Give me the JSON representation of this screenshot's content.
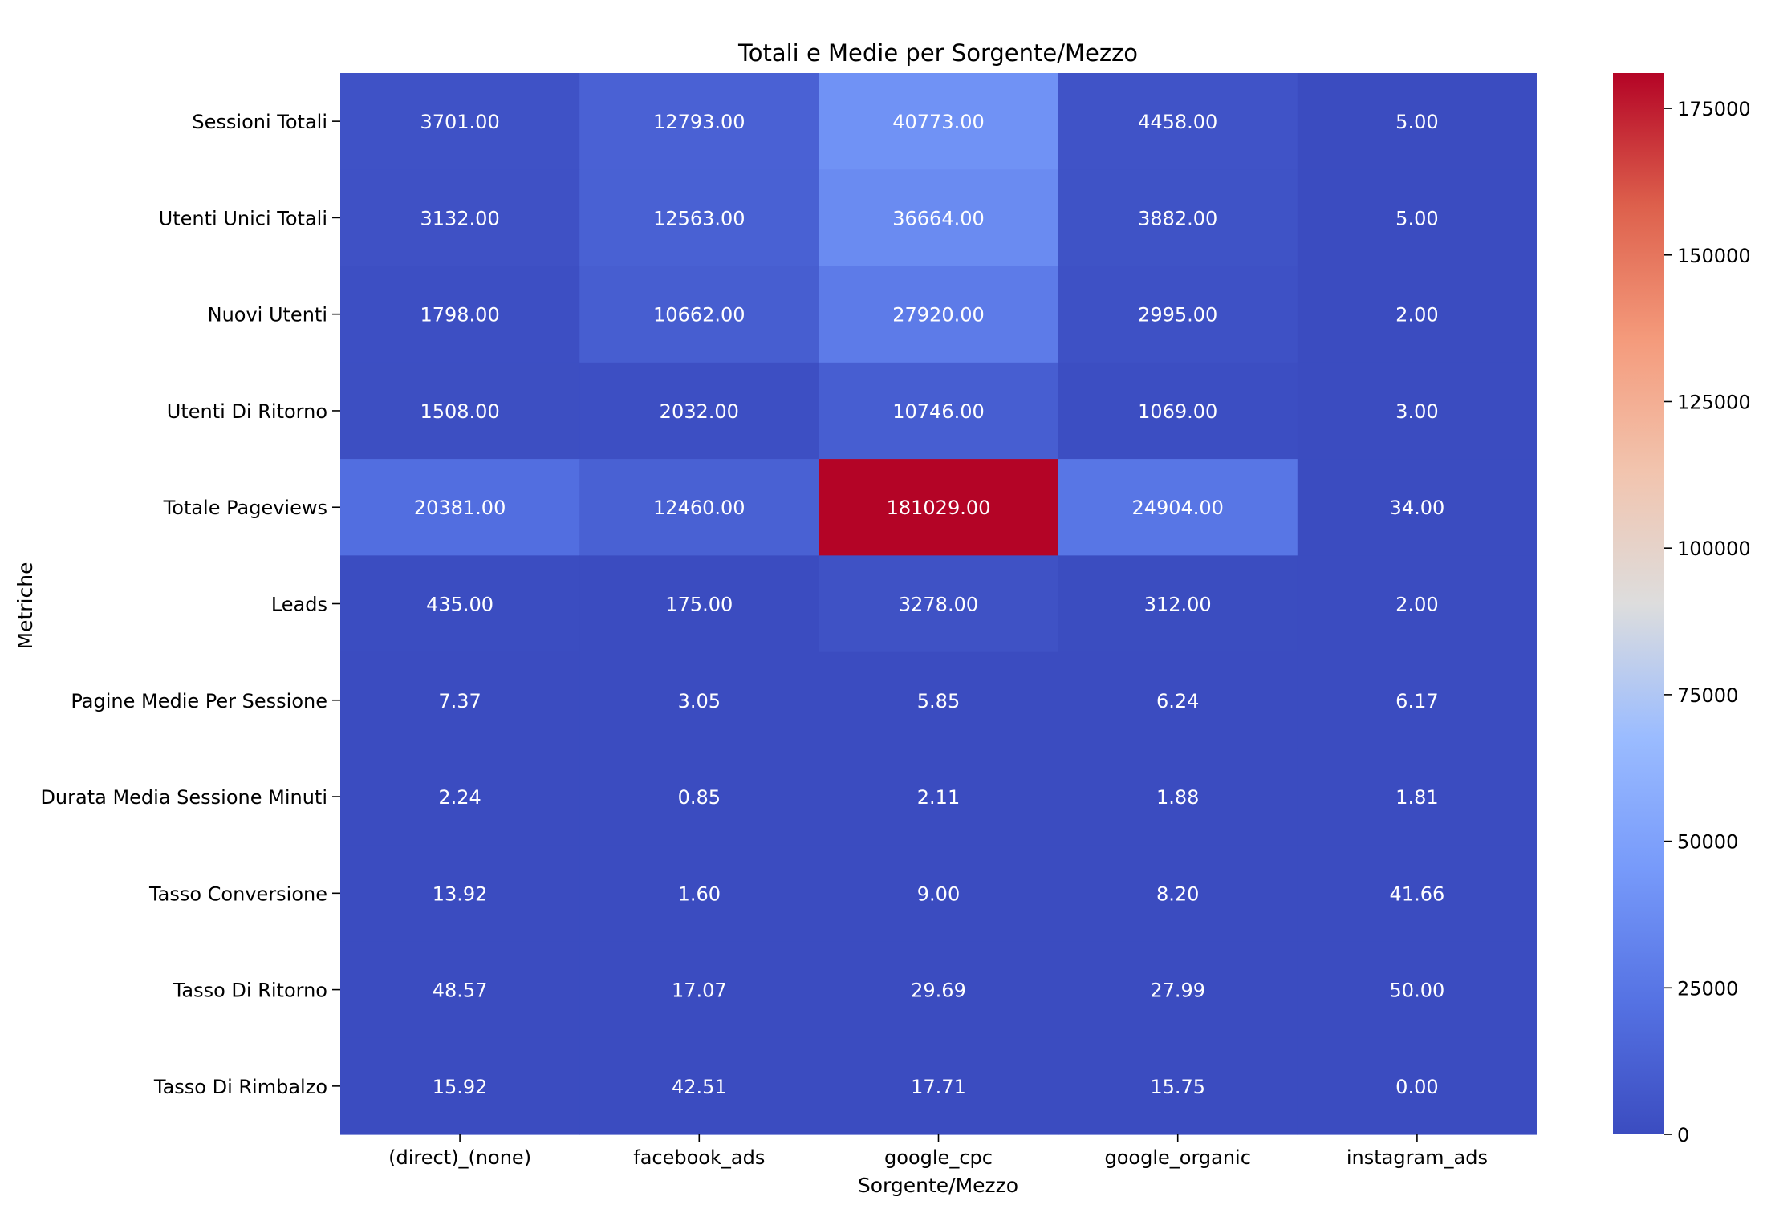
{
  "chart_data": {
    "type": "heatmap",
    "title": "Totali e Medie per Sorgente/Mezzo",
    "xlabel": "Sorgente/Mezzo",
    "ylabel": "Metriche",
    "columns": [
      "(direct)_(none)",
      "facebook_ads",
      "google_cpc",
      "google_organic",
      "instagram_ads"
    ],
    "rows": [
      "Sessioni Totali",
      "Utenti Unici Totali",
      "Nuovi Utenti",
      "Utenti Di Ritorno",
      "Totale Pageviews",
      "Leads",
      "Pagine Medie Per Sessione",
      "Durata Media Sessione Minuti",
      "Tasso Conversione",
      "Tasso Di Ritorno",
      "Tasso Di Rimbalzo"
    ],
    "values": [
      [
        3701.0,
        12793.0,
        40773.0,
        4458.0,
        5.0
      ],
      [
        3132.0,
        12563.0,
        36664.0,
        3882.0,
        5.0
      ],
      [
        1798.0,
        10662.0,
        27920.0,
        2995.0,
        2.0
      ],
      [
        1508.0,
        2032.0,
        10746.0,
        1069.0,
        3.0
      ],
      [
        20381.0,
        12460.0,
        181029.0,
        24904.0,
        34.0
      ],
      [
        435.0,
        175.0,
        3278.0,
        312.0,
        2.0
      ],
      [
        7.37,
        3.05,
        5.85,
        6.24,
        6.17
      ],
      [
        2.24,
        0.85,
        2.11,
        1.88,
        1.81
      ],
      [
        13.92,
        1.6,
        9.0,
        8.2,
        41.66
      ],
      [
        48.57,
        17.07,
        29.69,
        27.99,
        50.0
      ],
      [
        15.92,
        42.51,
        17.71,
        15.75,
        0.0
      ]
    ],
    "value_format_decimals": 2,
    "colormap": "coolwarm",
    "color_min": 0,
    "color_max": 181029,
    "colorbar_ticks": [
      0,
      25000,
      50000,
      75000,
      100000,
      125000,
      150000,
      175000
    ],
    "colorbar_tick_labels": [
      "0",
      "25000",
      "50000",
      "75000",
      "100000",
      "125000",
      "150000",
      "175000"
    ],
    "grid": false,
    "legend": "colorbar-right"
  }
}
